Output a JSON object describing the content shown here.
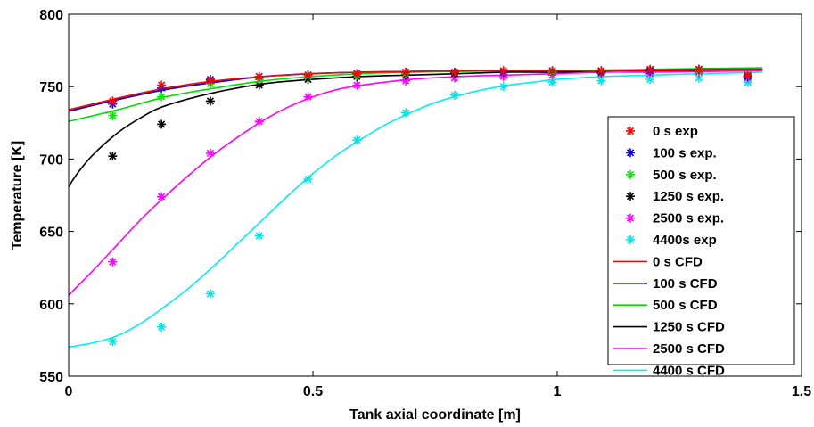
{
  "chart_data": {
    "type": "line",
    "title": "",
    "xlabel": "Tank axial coordinate [m]",
    "ylabel": "Temperature [K]",
    "xlim": [
      0,
      1.5
    ],
    "ylim": [
      550,
      800
    ],
    "xticks": [
      0,
      0.5,
      1,
      1.5
    ],
    "xtick_labels": [
      "0",
      "0.5",
      "1",
      "1.5"
    ],
    "yticks": [
      550,
      600,
      650,
      700,
      750,
      800
    ],
    "ytick_labels": [
      "550",
      "600",
      "650",
      "700",
      "750",
      "800"
    ],
    "grid": false,
    "legend_position": "right",
    "experimental": [
      {
        "name": "0 s exp",
        "color": "#ff0000",
        "x": [
          0.09,
          0.19,
          0.29,
          0.39,
          0.49,
          0.59,
          0.69,
          0.79,
          0.89,
          0.99,
          1.09,
          1.19,
          1.29,
          1.39
        ],
        "y": [
          740,
          751,
          754,
          757,
          758,
          759,
          760,
          760,
          761,
          761,
          761,
          762,
          762,
          758
        ]
      },
      {
        "name": "100 s exp.",
        "color": "#0000ff",
        "x": [
          0.09,
          0.19,
          0.29,
          0.39,
          0.49,
          0.59,
          0.69,
          0.79,
          0.89,
          0.99,
          1.09,
          1.19,
          1.29,
          1.39
        ],
        "y": [
          738,
          749,
          755,
          757,
          758,
          759,
          760,
          760,
          760,
          761,
          761,
          761,
          762,
          757
        ]
      },
      {
        "name": "500 s exp.",
        "color": "#00ee00",
        "x": [
          0.09,
          0.19,
          0.29,
          0.39,
          0.49,
          0.59,
          0.69,
          0.79,
          0.89,
          0.99,
          1.09,
          1.19,
          1.29,
          1.39
        ],
        "y": [
          730,
          743,
          752,
          755,
          757,
          758,
          759,
          760,
          760,
          760,
          761,
          761,
          761,
          757
        ]
      },
      {
        "name": "1250 s exp.",
        "color": "#000000",
        "x": [
          0.09,
          0.19,
          0.29,
          0.39,
          0.49,
          0.59,
          0.69,
          0.79,
          0.89,
          0.99,
          1.09,
          1.19,
          1.29,
          1.39
        ],
        "y": [
          702,
          724,
          740,
          751,
          755,
          757,
          758,
          759,
          760,
          760,
          760,
          761,
          761,
          757
        ]
      },
      {
        "name": "2500 s exp.",
        "color": "#ff00ff",
        "x": [
          0.09,
          0.19,
          0.29,
          0.39,
          0.49,
          0.59,
          0.69,
          0.79,
          0.89,
          0.99,
          1.09,
          1.19,
          1.29,
          1.39
        ],
        "y": [
          629,
          674,
          704,
          726,
          743,
          751,
          754,
          756,
          757,
          758,
          759,
          759,
          760,
          756
        ]
      },
      {
        "name": "4400s exp",
        "color": "#00e5e5",
        "x": [
          0.09,
          0.19,
          0.29,
          0.39,
          0.49,
          0.59,
          0.69,
          0.79,
          0.89,
          0.99,
          1.09,
          1.19,
          1.29,
          1.39
        ],
        "y": [
          574,
          584,
          607,
          647,
          686,
          713,
          732,
          744,
          750,
          753,
          754,
          755,
          756,
          753
        ]
      }
    ],
    "cfd": [
      {
        "name": "0 s CFD",
        "color": "#ff0000",
        "x": [
          0,
          0.1,
          0.2,
          0.3,
          0.4,
          0.5,
          0.6,
          0.7,
          0.8,
          0.9,
          1.0,
          1.1,
          1.2,
          1.3,
          1.42
        ],
        "y": [
          734,
          742,
          749,
          754,
          757,
          759,
          760,
          760.5,
          761,
          761,
          761,
          761,
          761.5,
          762,
          762
        ]
      },
      {
        "name": "100 s CFD",
        "color": "#0000cc",
        "x": [
          0,
          0.1,
          0.2,
          0.3,
          0.4,
          0.5,
          0.6,
          0.7,
          0.8,
          0.9,
          1.0,
          1.1,
          1.2,
          1.3,
          1.42
        ],
        "y": [
          733,
          741,
          748,
          753,
          757,
          759,
          760,
          760.5,
          761,
          761,
          761,
          761,
          761.5,
          762,
          762
        ]
      },
      {
        "name": "500 s CFD",
        "color": "#00dd00",
        "x": [
          0,
          0.1,
          0.2,
          0.3,
          0.4,
          0.5,
          0.6,
          0.7,
          0.8,
          0.9,
          1.0,
          1.1,
          1.2,
          1.3,
          1.42
        ],
        "y": [
          726,
          734,
          743,
          749,
          754,
          757,
          759,
          760,
          760.5,
          761,
          761,
          761.5,
          762,
          762.5,
          763
        ]
      },
      {
        "name": "1250 s CFD",
        "color": "#000000",
        "x": [
          0,
          0.02,
          0.05,
          0.1,
          0.15,
          0.2,
          0.3,
          0.4,
          0.5,
          0.6,
          0.7,
          0.8,
          0.9,
          1.0,
          1.1,
          1.2,
          1.3,
          1.42
        ],
        "y": [
          681,
          691,
          703,
          718,
          729,
          737,
          746,
          752,
          755,
          757,
          758,
          759,
          760,
          760,
          761,
          761,
          761.5,
          762
        ]
      },
      {
        "name": "2500 s CFD",
        "color": "#ff00ff",
        "x": [
          0,
          0.05,
          0.1,
          0.15,
          0.2,
          0.25,
          0.3,
          0.35,
          0.4,
          0.45,
          0.5,
          0.55,
          0.6,
          0.7,
          0.8,
          0.9,
          1.0,
          1.1,
          1.2,
          1.3,
          1.42
        ],
        "y": [
          606,
          623,
          641,
          659,
          675,
          690,
          704,
          716,
          727,
          736,
          743,
          748,
          751,
          755,
          757,
          758,
          759,
          760,
          760,
          760.5,
          761
        ]
      },
      {
        "name": "4400 s CFD",
        "color": "#00f0f0",
        "x": [
          0,
          0.05,
          0.1,
          0.15,
          0.2,
          0.25,
          0.3,
          0.35,
          0.4,
          0.45,
          0.5,
          0.55,
          0.6,
          0.65,
          0.7,
          0.75,
          0.8,
          0.85,
          0.9,
          0.95,
          1.0,
          1.1,
          1.2,
          1.3,
          1.42
        ],
        "y": [
          570,
          573,
          578,
          587,
          599,
          612,
          627,
          643,
          659,
          675,
          690,
          703,
          714,
          724,
          732,
          739,
          744,
          748,
          751,
          753,
          755,
          757,
          758,
          759,
          760
        ]
      }
    ]
  }
}
